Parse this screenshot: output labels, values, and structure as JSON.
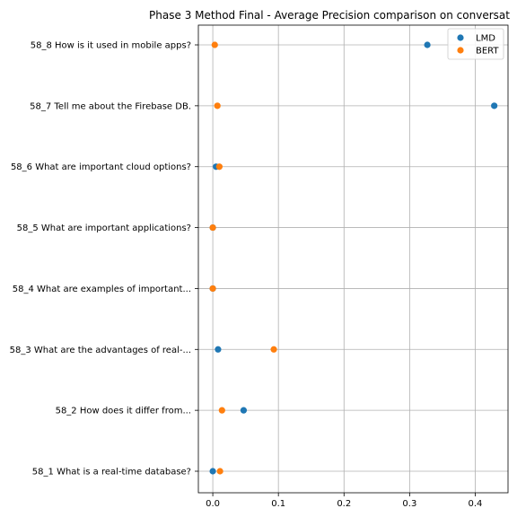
{
  "chart_data": {
    "type": "scatter",
    "title": "Phase 3 Method Final - Average Precision comparison on conversat",
    "xlabel": "",
    "ylabel": "",
    "xlim": [
      -0.022,
      0.45
    ],
    "xticks": [
      0.0,
      0.1,
      0.2,
      0.3,
      0.4
    ],
    "xtick_labels": [
      "0.0",
      "0.1",
      "0.2",
      "0.3",
      "0.4"
    ],
    "grid": true,
    "legend_position": "top-right",
    "categories": [
      "58_1 What is a real-time database?",
      "58_2 How does it differ from...",
      "58_3 What are the advantages of real-...",
      "58_4 What are examples of important...",
      "58_5 What are important applications?",
      "58_6 What are important cloud options?",
      "58_7 Tell me about the Firebase DB.",
      "58_8 How is it used in mobile apps?"
    ],
    "series": [
      {
        "name": "LMD",
        "color": "#1f77b4",
        "values": [
          0.0,
          0.047,
          0.008,
          0.0,
          0.0,
          0.005,
          0.429,
          0.327
        ]
      },
      {
        "name": "BERT",
        "color": "#ff7f0e",
        "values": [
          0.011,
          0.014,
          0.093,
          0.0,
          0.0,
          0.01,
          0.007,
          0.003
        ]
      }
    ]
  }
}
